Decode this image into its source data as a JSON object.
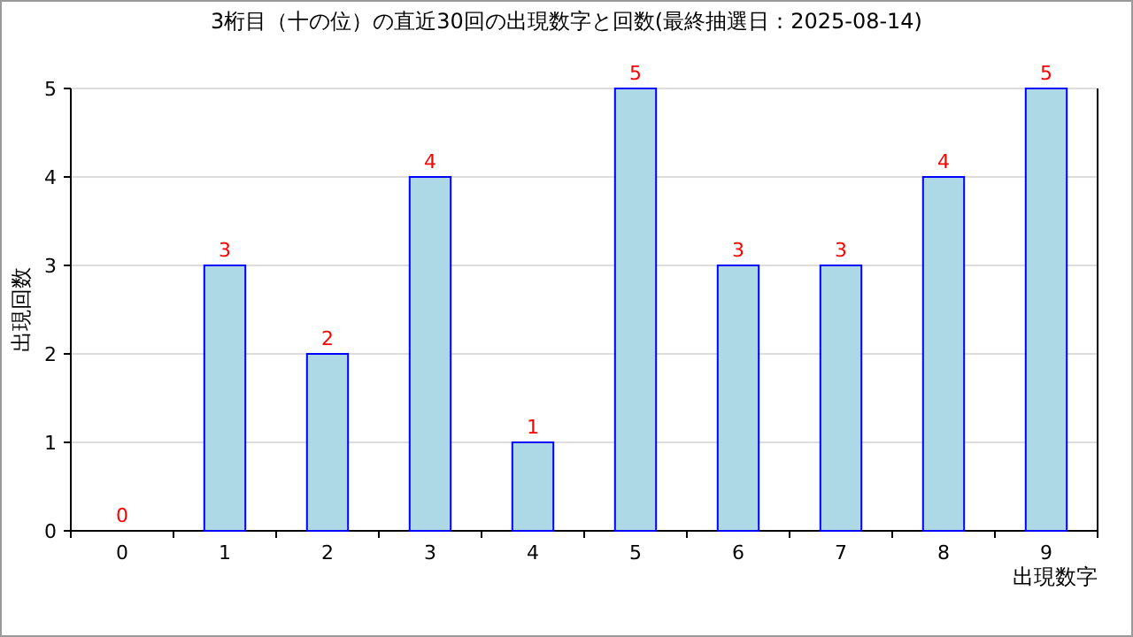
{
  "chart_data": {
    "type": "bar",
    "title": "3桁目（十の位）の直近30回の出現数字と回数(最終抽選日：2025-08-14)",
    "xlabel": "出現数字",
    "ylabel": "出現回数",
    "categories": [
      "0",
      "1",
      "2",
      "3",
      "4",
      "5",
      "6",
      "7",
      "8",
      "9"
    ],
    "values": [
      0,
      3,
      2,
      4,
      1,
      5,
      3,
      3,
      4,
      5
    ],
    "color": "#add8e6",
    "ylim": [
      0,
      5
    ],
    "yticks": [
      0,
      1,
      2,
      3,
      4,
      5
    ],
    "grid": "y",
    "data_labels": true
  }
}
